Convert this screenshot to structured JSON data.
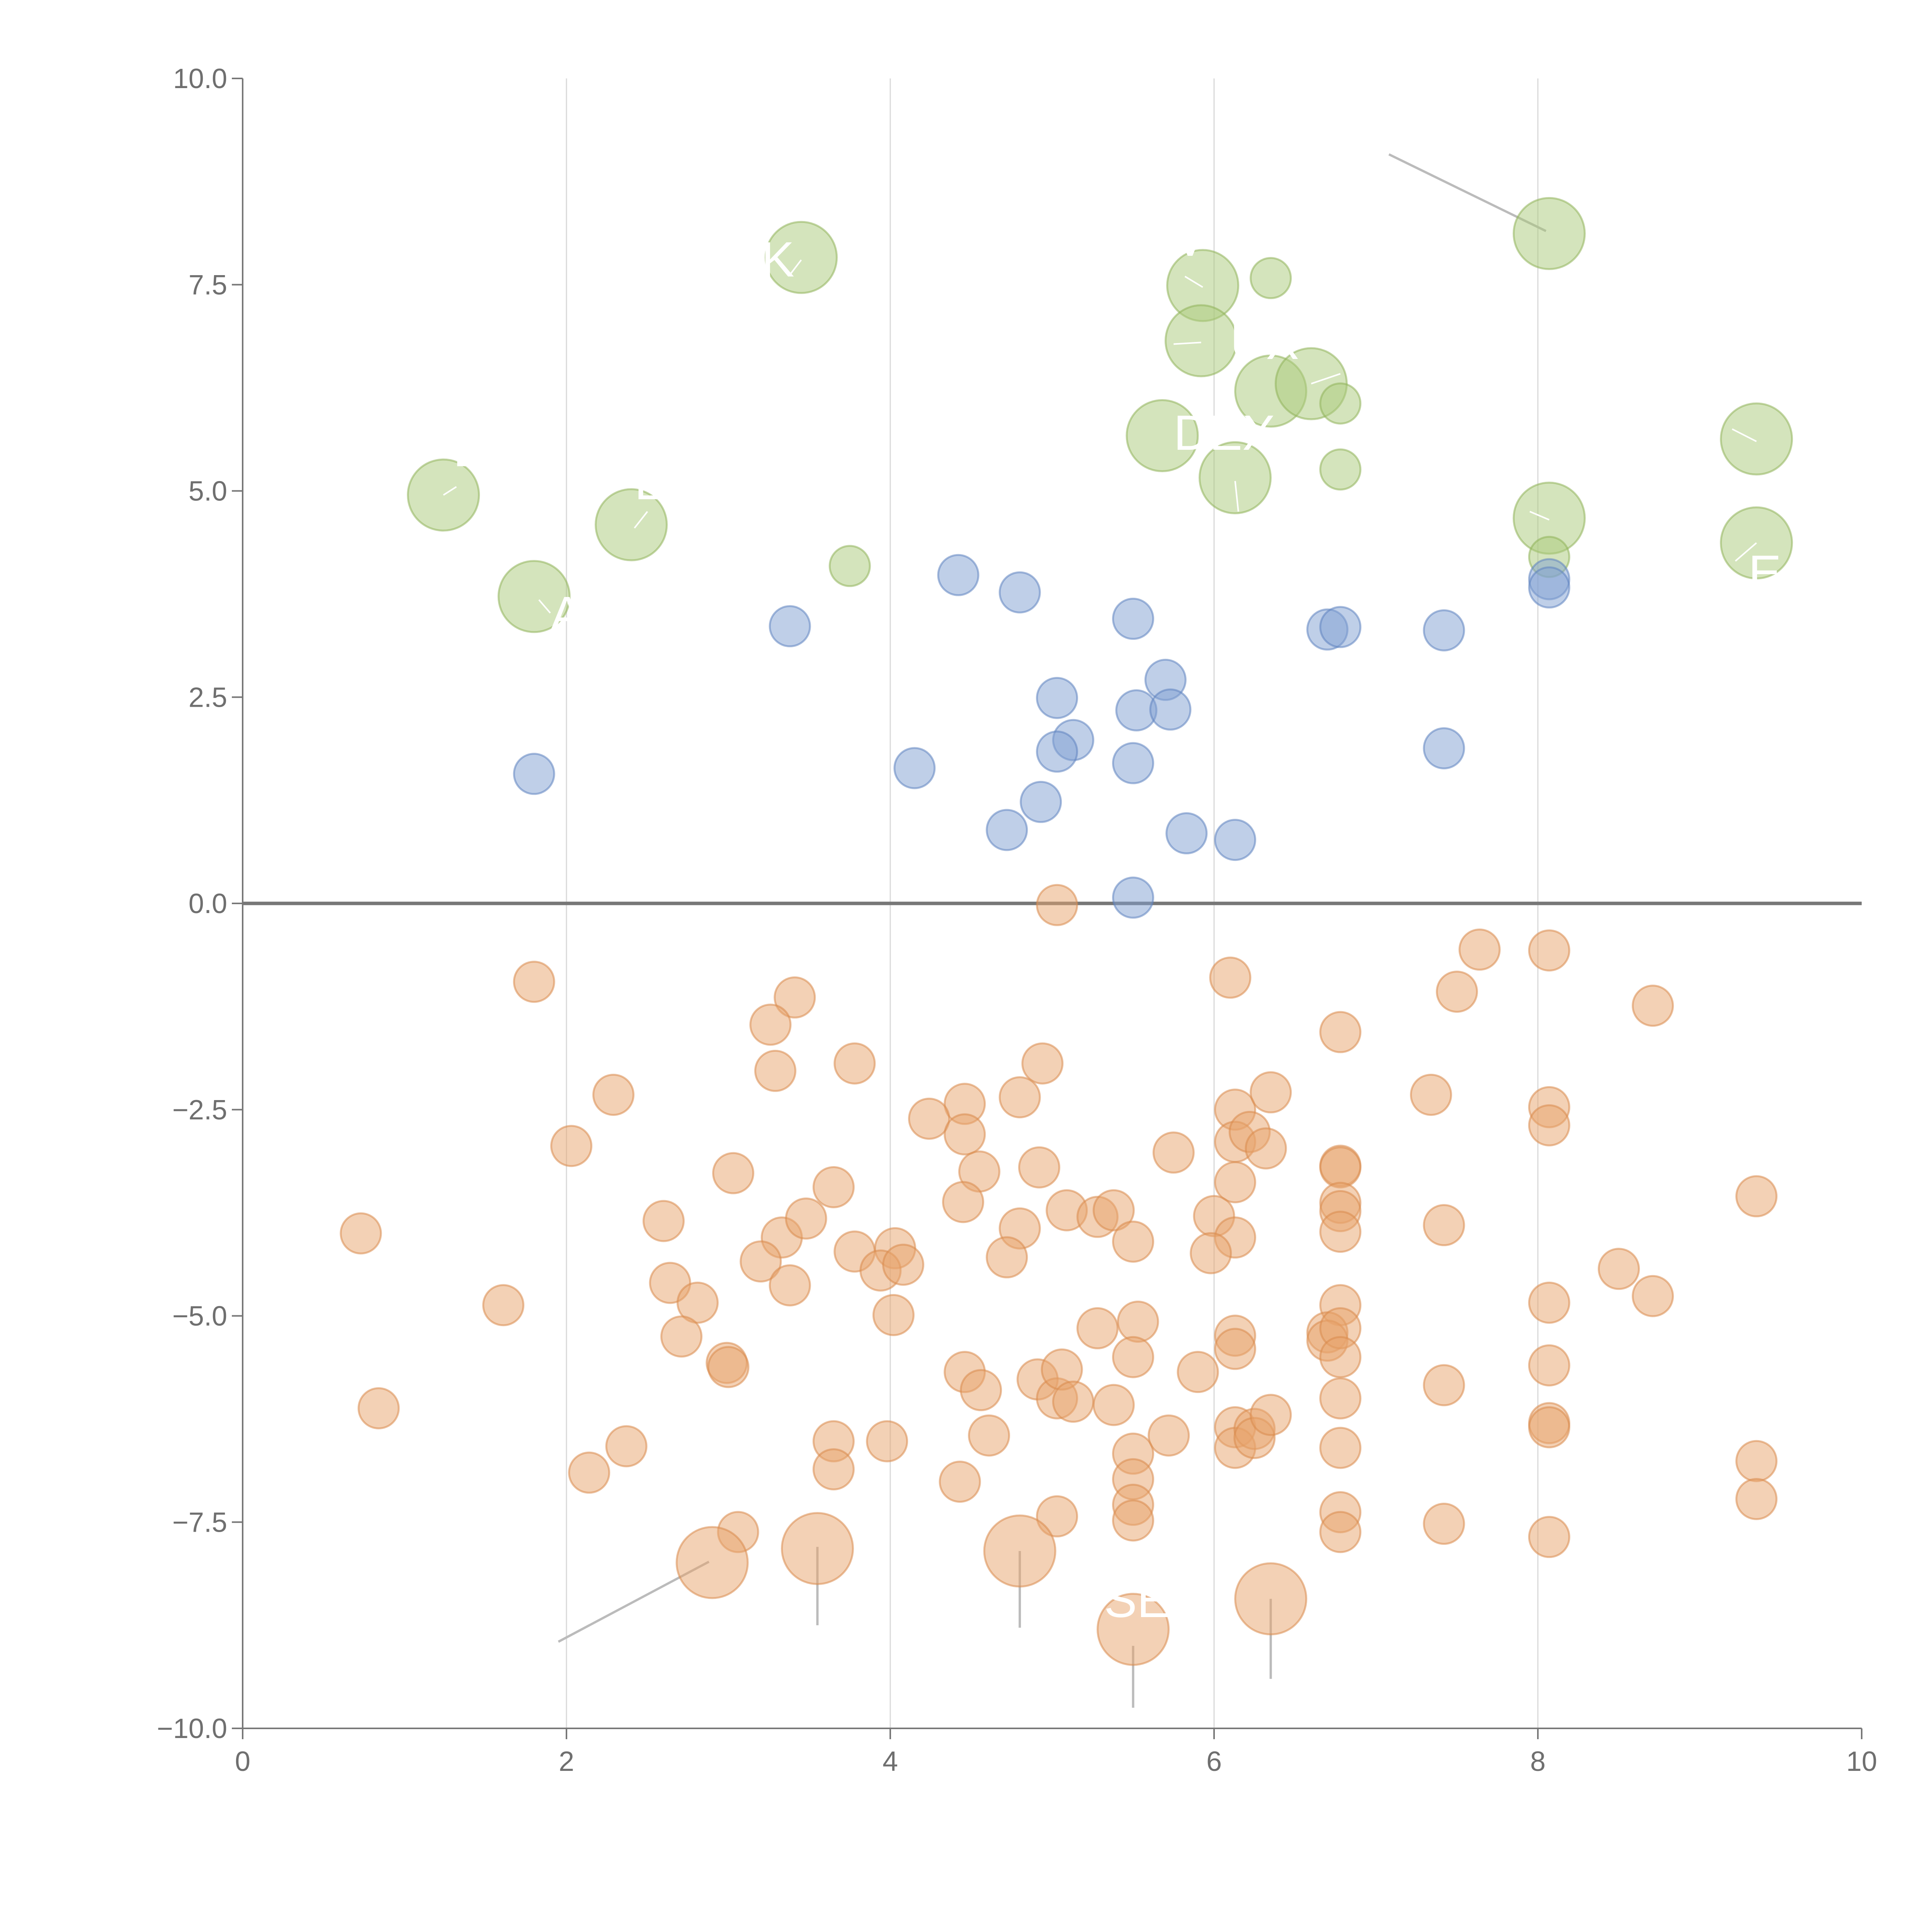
{
  "chart_data": {
    "type": "scatter",
    "title": "",
    "xlabel": "",
    "ylabel": "",
    "xlim": [
      0,
      10
    ],
    "ylim": [
      -10,
      10
    ],
    "grid": "vertical lines at x ticks",
    "x_ticks": [
      0,
      2,
      4,
      6,
      8,
      10
    ],
    "x_tick_labels": [
      "0",
      "2",
      "4",
      "6",
      "8",
      "10"
    ],
    "y_ticks": [
      -10,
      -7.5,
      -5,
      -2.5,
      0,
      2.5,
      5,
      7.5,
      10
    ],
    "y_tick_labels": [
      "−10.0",
      "−7.5",
      "−5.0",
      "−2.5",
      "0.0",
      "2.5",
      "5.0",
      "7.5",
      "10.0"
    ],
    "colors": {
      "green_fill": "#a9c97a",
      "green_edge": "#8fb35a",
      "blue_fill": "#7f9fd1",
      "blue_edge": "#5f83bf",
      "orange_fill": "#e8a36c",
      "orange_edge": "#d88a4d",
      "axis": "#777777",
      "grid": "#d9d9d9",
      "zero_line": "#777777",
      "leader": "#bbbbbb"
    },
    "series": [
      {
        "name": "green",
        "color_key": "green",
        "points": [
          [
            3.45,
            7.83,
            2
          ],
          [
            5.93,
            7.49,
            2
          ],
          [
            5.92,
            6.82,
            2
          ],
          [
            6.35,
            6.21,
            2
          ],
          [
            6.6,
            6.3,
            2
          ],
          [
            5.68,
            5.67,
            2
          ],
          [
            6.13,
            5.16,
            2
          ],
          [
            1.24,
            4.95,
            2
          ],
          [
            2.4,
            4.59,
            2
          ],
          [
            1.8,
            3.72,
            2
          ],
          [
            8.07,
            8.12,
            2
          ],
          [
            9.35,
            5.63,
            2
          ],
          [
            9.35,
            4.37,
            2
          ],
          [
            8.07,
            4.67,
            2
          ],
          [
            6.35,
            7.58,
            1
          ],
          [
            6.78,
            6.06,
            1
          ],
          [
            6.78,
            5.26,
            1
          ],
          [
            3.75,
            4.09,
            1
          ],
          [
            8.07,
            4.2,
            1
          ]
        ]
      },
      {
        "name": "blue",
        "color_key": "blue",
        "points": [
          [
            4.42,
            3.98,
            1
          ],
          [
            4.8,
            3.77,
            1
          ],
          [
            3.38,
            3.36,
            1
          ],
          [
            5.5,
            3.45,
            1
          ],
          [
            5.7,
            2.71,
            1
          ],
          [
            5.03,
            2.49,
            1
          ],
          [
            5.52,
            2.34,
            1
          ],
          [
            5.73,
            2.35,
            1
          ],
          [
            5.13,
            1.98,
            1
          ],
          [
            5.03,
            1.84,
            1
          ],
          [
            5.5,
            1.7,
            1
          ],
          [
            4.15,
            1.64,
            1
          ],
          [
            1.8,
            1.57,
            1
          ],
          [
            4.93,
            1.23,
            1
          ],
          [
            4.72,
            0.89,
            1
          ],
          [
            5.83,
            0.85,
            1
          ],
          [
            6.13,
            0.77,
            1
          ],
          [
            5.5,
            0.07,
            1
          ],
          [
            6.7,
            3.32,
            1
          ],
          [
            6.78,
            3.35,
            1
          ],
          [
            7.42,
            3.31,
            1
          ],
          [
            7.42,
            1.88,
            1
          ],
          [
            8.07,
            3.93,
            1
          ],
          [
            8.07,
            3.83,
            1
          ]
        ]
      },
      {
        "name": "orange",
        "color_key": "orange",
        "points": [
          [
            5.03,
            -0.02,
            1
          ],
          [
            1.8,
            -0.95,
            1
          ],
          [
            3.41,
            -1.14,
            1
          ],
          [
            3.26,
            -1.47,
            1
          ],
          [
            3.78,
            -1.94,
            1
          ],
          [
            3.29,
            -2.03,
            1
          ],
          [
            2.29,
            -2.32,
            1
          ],
          [
            4.94,
            -1.94,
            1
          ],
          [
            4.8,
            -2.35,
            1
          ],
          [
            4.46,
            -2.43,
            1
          ],
          [
            4.24,
            -2.61,
            1
          ],
          [
            4.46,
            -2.8,
            1
          ],
          [
            2.03,
            -2.94,
            1
          ],
          [
            3.03,
            -3.27,
            1
          ],
          [
            4.92,
            -3.2,
            1
          ],
          [
            4.55,
            -3.25,
            1
          ],
          [
            3.65,
            -3.44,
            1
          ],
          [
            5.75,
            -3.02,
            1
          ],
          [
            6.1,
            -0.9,
            1
          ],
          [
            6.13,
            -2.5,
            1
          ],
          [
            6.13,
            -2.89,
            1
          ],
          [
            6.22,
            -2.77,
            1
          ],
          [
            6.32,
            -2.97,
            1
          ],
          [
            6.35,
            -2.29,
            1
          ],
          [
            6.13,
            -3.38,
            1
          ],
          [
            0.73,
            -4.0,
            1
          ],
          [
            2.6,
            -3.85,
            1
          ],
          [
            3.33,
            -4.05,
            1
          ],
          [
            3.48,
            -3.82,
            1
          ],
          [
            4.45,
            -3.62,
            1
          ],
          [
            4.8,
            -3.94,
            1
          ],
          [
            5.09,
            -3.72,
            1
          ],
          [
            5.28,
            -3.8,
            1
          ],
          [
            5.38,
            -3.72,
            1
          ],
          [
            5.5,
            -4.1,
            1
          ],
          [
            6.0,
            -3.79,
            1
          ],
          [
            6.13,
            -4.05,
            1
          ],
          [
            3.78,
            -4.22,
            1
          ],
          [
            4.03,
            -4.18,
            1
          ],
          [
            3.2,
            -4.34,
            1
          ],
          [
            3.94,
            -4.45,
            1
          ],
          [
            4.08,
            -4.38,
            1
          ],
          [
            4.72,
            -4.29,
            1
          ],
          [
            5.98,
            -4.24,
            1
          ],
          [
            2.64,
            -4.6,
            1
          ],
          [
            3.38,
            -4.63,
            1
          ],
          [
            1.61,
            -4.87,
            1
          ],
          [
            2.81,
            -4.84,
            1
          ],
          [
            4.02,
            -4.99,
            1
          ],
          [
            2.71,
            -5.25,
            1
          ],
          [
            5.28,
            -5.15,
            1
          ],
          [
            5.53,
            -5.07,
            1
          ],
          [
            6.13,
            -5.24,
            1
          ],
          [
            6.13,
            -5.4,
            1
          ],
          [
            2.99,
            -5.57,
            1
          ],
          [
            3.0,
            -5.62,
            1
          ],
          [
            4.46,
            -5.68,
            1
          ],
          [
            4.56,
            -5.9,
            1
          ],
          [
            4.91,
            -5.77,
            1
          ],
          [
            5.03,
            -6.0,
            1
          ],
          [
            5.06,
            -5.65,
            1
          ],
          [
            5.13,
            -6.04,
            1
          ],
          [
            5.38,
            -6.08,
            1
          ],
          [
            5.5,
            -5.5,
            1
          ],
          [
            5.9,
            -5.68,
            1
          ],
          [
            0.84,
            -6.12,
            1
          ],
          [
            2.37,
            -6.58,
            1
          ],
          [
            2.14,
            -6.9,
            1
          ],
          [
            3.65,
            -6.52,
            1
          ],
          [
            3.65,
            -6.86,
            1
          ],
          [
            3.98,
            -6.52,
            1
          ],
          [
            4.61,
            -6.45,
            1
          ],
          [
            4.43,
            -7.01,
            1
          ],
          [
            5.5,
            -6.67,
            1
          ],
          [
            5.5,
            -6.98,
            1
          ],
          [
            5.72,
            -6.45,
            1
          ],
          [
            6.13,
            -6.35,
            1
          ],
          [
            6.13,
            -6.6,
            1
          ],
          [
            6.25,
            -6.37,
            1
          ],
          [
            6.25,
            -6.48,
            1
          ],
          [
            6.35,
            -6.2,
            1
          ],
          [
            3.06,
            -7.62,
            1
          ],
          [
            5.03,
            -7.43,
            1
          ],
          [
            5.5,
            -7.29,
            1
          ],
          [
            5.5,
            -7.48,
            1
          ],
          [
            6.78,
            -1.56,
            1
          ],
          [
            6.78,
            -3.18,
            1
          ],
          [
            6.78,
            -3.2,
            1
          ],
          [
            6.78,
            -3.63,
            1
          ],
          [
            6.78,
            -3.73,
            1
          ],
          [
            6.78,
            -3.98,
            1
          ],
          [
            6.78,
            -4.87,
            1
          ],
          [
            6.7,
            -5.2,
            1
          ],
          [
            6.7,
            -5.3,
            1
          ],
          [
            6.78,
            -5.15,
            1
          ],
          [
            6.78,
            -5.5,
            1
          ],
          [
            6.78,
            -6.0,
            1
          ],
          [
            6.78,
            -6.6,
            1
          ],
          [
            6.78,
            -7.38,
            1
          ],
          [
            6.78,
            -7.62,
            1
          ],
          [
            7.64,
            -0.56,
            1
          ],
          [
            7.5,
            -1.07,
            1
          ],
          [
            7.34,
            -2.32,
            1
          ],
          [
            7.42,
            -3.9,
            1
          ],
          [
            7.42,
            -5.84,
            1
          ],
          [
            7.42,
            -7.52,
            1
          ],
          [
            8.07,
            -0.57,
            1
          ],
          [
            8.07,
            -2.47,
            1
          ],
          [
            8.07,
            -2.69,
            1
          ],
          [
            8.07,
            -4.84,
            1
          ],
          [
            8.07,
            -5.6,
            1
          ],
          [
            8.07,
            -6.3,
            1
          ],
          [
            8.07,
            -6.35,
            1
          ],
          [
            8.07,
            -7.68,
            1
          ],
          [
            8.71,
            -1.24,
            1
          ],
          [
            8.5,
            -4.43,
            1
          ],
          [
            8.71,
            -4.76,
            1
          ],
          [
            9.35,
            -3.55,
            1
          ],
          [
            9.35,
            -6.76,
            1
          ],
          [
            9.35,
            -7.22,
            1
          ],
          [
            2.9,
            -7.99,
            2
          ],
          [
            3.55,
            -7.82,
            2
          ],
          [
            4.8,
            -7.85,
            2
          ],
          [
            5.5,
            -8.8,
            2
          ],
          [
            6.35,
            -8.43,
            2
          ]
        ]
      }
    ],
    "annotations": [
      {
        "text": "SE",
        "x": 5.32,
        "y": -8.65
      },
      {
        "text": "DEX",
        "x": 5.75,
        "y": 5.5
      },
      {
        "text": "UX",
        "x": 6.1,
        "y": 6.6
      },
      {
        "text": "DA",
        "x": 1.3,
        "y": 5.3
      },
      {
        "text": "LX",
        "x": 2.42,
        "y": 4.9
      },
      {
        "text": "AX",
        "x": 1.9,
        "y": 3.3
      },
      {
        "text": "AK",
        "x": 3.0,
        "y": 7.6
      },
      {
        "text": "V",
        "x": 5.75,
        "y": 7.85
      },
      {
        "text": "E",
        "x": 9.3,
        "y": 3.8
      }
    ],
    "leaders": [
      {
        "from": [
          7.08,
          9.08
        ],
        "to": [
          8.05,
          8.15
        ],
        "style": "grey"
      },
      {
        "from": [
          1.95,
          -8.95
        ],
        "to": [
          2.88,
          -7.98
        ],
        "style": "grey"
      },
      {
        "from": [
          3.55,
          -7.8
        ],
        "to": [
          3.55,
          -8.75
        ],
        "style": "grey"
      },
      {
        "from": [
          4.8,
          -7.85
        ],
        "to": [
          4.8,
          -8.78
        ],
        "style": "grey"
      },
      {
        "from": [
          5.5,
          -9.0
        ],
        "to": [
          5.5,
          -9.75
        ],
        "style": "grey"
      },
      {
        "from": [
          6.35,
          -8.43
        ],
        "to": [
          6.35,
          -9.4
        ],
        "style": "grey"
      },
      {
        "from": [
          1.83,
          3.68
        ],
        "to": [
          1.9,
          3.52
        ],
        "style": "white"
      },
      {
        "from": [
          2.42,
          4.55
        ],
        "to": [
          2.5,
          4.75
        ],
        "style": "white"
      },
      {
        "from": [
          3.45,
          7.8
        ],
        "to": [
          3.38,
          7.62
        ],
        "style": "white"
      },
      {
        "from": [
          5.93,
          7.47
        ],
        "to": [
          5.82,
          7.6
        ],
        "style": "white"
      },
      {
        "from": [
          5.92,
          6.8
        ],
        "to": [
          5.75,
          6.78
        ],
        "style": "white"
      },
      {
        "from": [
          6.13,
          5.12
        ],
        "to": [
          6.15,
          4.75
        ],
        "style": "white"
      },
      {
        "from": [
          6.6,
          6.3
        ],
        "to": [
          6.78,
          6.42
        ],
        "style": "white"
      },
      {
        "from": [
          8.07,
          4.65
        ],
        "to": [
          7.95,
          4.75
        ],
        "style": "white"
      },
      {
        "from": [
          9.35,
          5.6
        ],
        "to": [
          9.2,
          5.75
        ],
        "style": "white"
      },
      {
        "from": [
          9.35,
          4.37
        ],
        "to": [
          9.22,
          4.15
        ],
        "style": "white"
      },
      {
        "from": [
          1.24,
          4.95
        ],
        "to": [
          1.32,
          5.05
        ],
        "style": "white"
      }
    ]
  }
}
